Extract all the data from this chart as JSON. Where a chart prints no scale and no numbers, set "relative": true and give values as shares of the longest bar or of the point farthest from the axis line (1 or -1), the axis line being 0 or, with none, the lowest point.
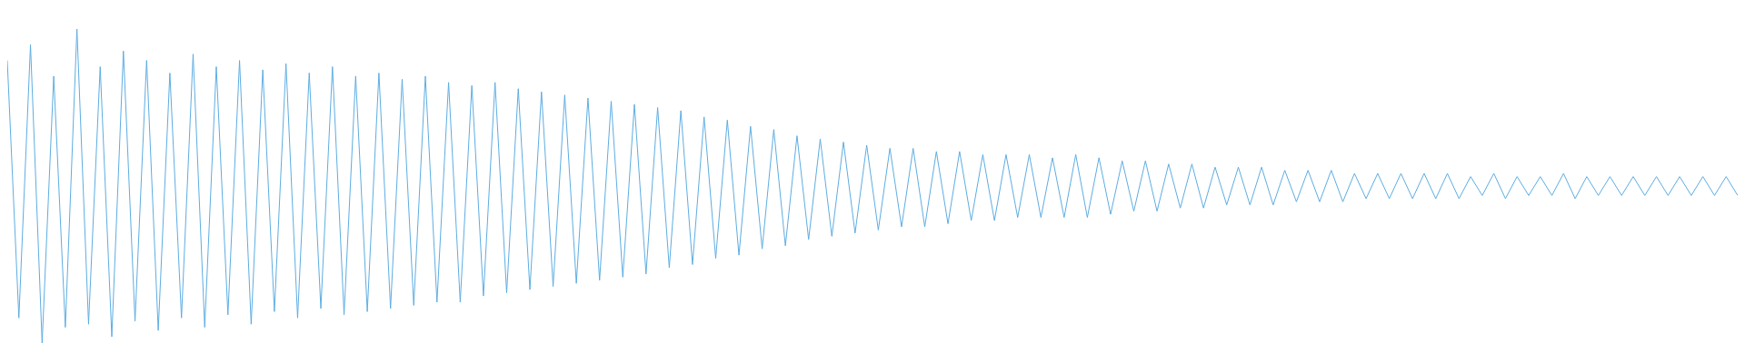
{
  "chart_data": {
    "type": "line",
    "relative": true,
    "categories": [
      null,
      null,
      null,
      null,
      null,
      null,
      null,
      null,
      null,
      null,
      null,
      null,
      null,
      null,
      null,
      null,
      null,
      null,
      null,
      null,
      null,
      null,
      null,
      null,
      null,
      null,
      null,
      null,
      null,
      null,
      null,
      null,
      null,
      null,
      null,
      null,
      null,
      null,
      null,
      null,
      null,
      null,
      null,
      null,
      null,
      null,
      null,
      null,
      null,
      null,
      null,
      null,
      null,
      null,
      null,
      null,
      null,
      null,
      null,
      null,
      null,
      null,
      null,
      null,
      null,
      null,
      null,
      null,
      null,
      null,
      null,
      null,
      null,
      null,
      null,
      null,
      null,
      null,
      null,
      null,
      null,
      null,
      null,
      null,
      null,
      null,
      null,
      null,
      null,
      null,
      null,
      null,
      null,
      null,
      null,
      null,
      null,
      null,
      null,
      null,
      null,
      null,
      null,
      null,
      null,
      null,
      null,
      null,
      null,
      null,
      null,
      null,
      null,
      null,
      null,
      null,
      null,
      null,
      null,
      null,
      null,
      null,
      null,
      null,
      null,
      null,
      null,
      null,
      null,
      null,
      null,
      null,
      null,
      null,
      null,
      null,
      null,
      null,
      null,
      null,
      null,
      null,
      null,
      null,
      null,
      null,
      null,
      null,
      null,
      null
    ],
    "series": [
      {
        "color": "#5dade2",
        "values": [
          0.9,
          0.08,
          0.95,
          0,
          0.85,
          0.05,
          1,
          0.06,
          0.88,
          0.02,
          0.93,
          0.07,
          0.9,
          0.04,
          0.86,
          0.08,
          0.92,
          0.05,
          0.88,
          0.09,
          0.9,
          0.06,
          0.87,
          0.1,
          0.89,
          0.08,
          0.86,
          0.11,
          0.88,
          0.09,
          0.85,
          0.1,
          0.86,
          0.11,
          0.84,
          0.12,
          0.85,
          0.13,
          0.83,
          0.13,
          0.82,
          0.15,
          0.83,
          0.16,
          0.81,
          0.17,
          0.8,
          0.18,
          0.79,
          0.19,
          0.78,
          0.2,
          0.77,
          0.21,
          0.76,
          0.22,
          0.75,
          0.24,
          0.74,
          0.25,
          0.72,
          0.27,
          0.71,
          0.28,
          0.69,
          0.3,
          0.68,
          0.31,
          0.66,
          0.33,
          0.65,
          0.34,
          0.64,
          0.35,
          0.63,
          0.36,
          0.62,
          0.37,
          0.62,
          0.37,
          0.61,
          0.38,
          0.61,
          0.39,
          0.6,
          0.39,
          0.6,
          0.4,
          0.6,
          0.4,
          0.59,
          0.4,
          0.6,
          0.4,
          0.59,
          0.41,
          0.58,
          0.42,
          0.58,
          0.42,
          0.57,
          0.43,
          0.57,
          0.43,
          0.56,
          0.44,
          0.56,
          0.44,
          0.56,
          0.44,
          0.55,
          0.45,
          0.55,
          0.45,
          0.55,
          0.45,
          0.54,
          0.46,
          0.54,
          0.46,
          0.54,
          0.46,
          0.54,
          0.46,
          0.54,
          0.46,
          0.53,
          0.47,
          0.54,
          0.46,
          0.53,
          0.47,
          0.53,
          0.47,
          0.54,
          0.46,
          0.53,
          0.47,
          0.53,
          0.47,
          0.53,
          0.47,
          0.53,
          0.47,
          0.53,
          0.47,
          0.53,
          0.47,
          0.53,
          0.47
        ]
      }
    ]
  }
}
